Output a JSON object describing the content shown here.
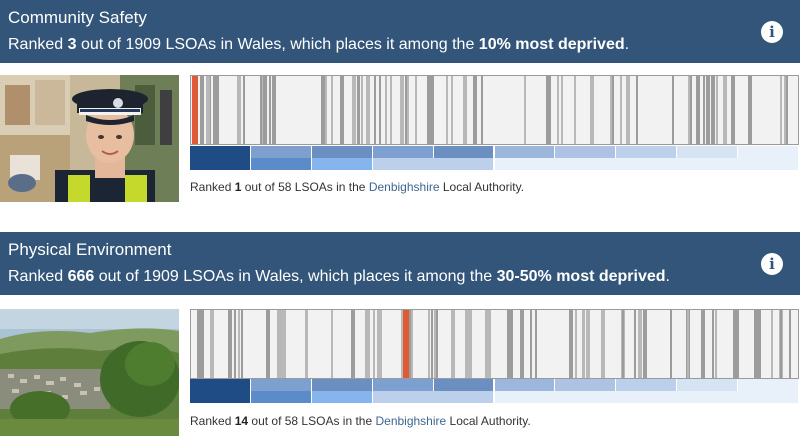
{
  "colors": {
    "header_bg": "#325579",
    "marker": "#e05a35",
    "stripe": "#a9a9a9",
    "band_palette": [
      "#1f4c85",
      "#5b8cc9",
      "#86b4ec",
      "#6a8fc0",
      "#7ea0d0",
      "#9cb6dc",
      "#aec3e4",
      "#bcd0eb",
      "#d6e3f3",
      "#e8f0f9"
    ]
  },
  "sections": [
    {
      "title": "Community Safety",
      "subtitle_pre": "Ranked ",
      "rank": "3",
      "subtitle_mid": " out of 1909 LSOAs in Wales, which places it among the ",
      "decile_text": "10% most deprived",
      "subtitle_post": ".",
      "info_icon": "info-icon",
      "image": "police-officer-photo",
      "marker_fraction": 0.002,
      "local_pre": "Ranked ",
      "local_rank": "1",
      "local_mid": " out of 58 LSOAs in the ",
      "local_authority": "Denbighshire",
      "local_post": " Local Authority."
    },
    {
      "title": "Physical Environment",
      "subtitle_pre": "Ranked ",
      "rank": "666",
      "subtitle_mid": " out of 1909 LSOAs in Wales, which places it among the ",
      "decile_text": "30-50% most deprived",
      "subtitle_post": ".",
      "info_icon": "info-icon",
      "image": "valley-landscape-photo",
      "marker_fraction": 0.349,
      "local_pre": "Ranked ",
      "local_rank": "14",
      "local_mid": " out of 58 LSOAs in the ",
      "local_authority": "Denbighshire",
      "local_post": " Local Authority."
    }
  ]
}
